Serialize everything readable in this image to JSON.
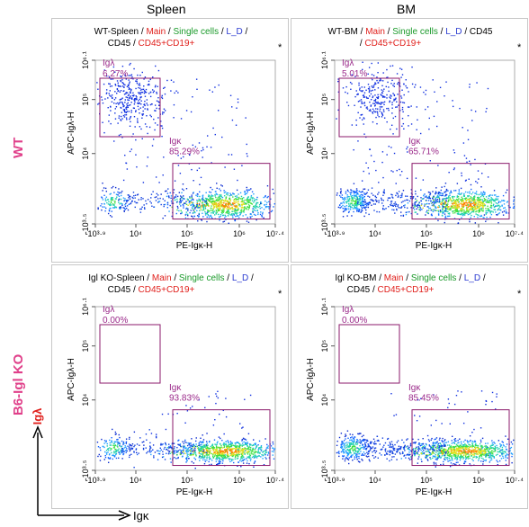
{
  "column_headers": [
    "Spleen",
    "BM"
  ],
  "row_labels": [
    "WT",
    "B6-Igl KO"
  ],
  "colors": {
    "magenta": "#e0408a",
    "gate": "#8b1a6b",
    "gate_text": "#9b2a8a",
    "red": "#e0201c",
    "green": "#1a9a2a",
    "blue": "#2a3ad0"
  },
  "axis_legend": {
    "y": "Igλ",
    "x": "Igκ"
  },
  "panels": [
    {
      "id": "wt-spleen",
      "title_line1": [
        {
          "t": "WT-Spleen",
          "c": "black"
        },
        {
          "t": " / ",
          "c": "black"
        },
        {
          "t": "Main",
          "c": "red"
        },
        {
          "t": " / ",
          "c": "black"
        },
        {
          "t": "Single cells",
          "c": "green"
        },
        {
          "t": " / ",
          "c": "black"
        },
        {
          "t": "L_D",
          "c": "blue"
        },
        {
          "t": " /",
          "c": "black"
        }
      ],
      "title_line2": [
        {
          "t": "CD45",
          "c": "black"
        },
        {
          "t": " / ",
          "c": "black"
        },
        {
          "t": "CD45+CD19+",
          "c": "red"
        }
      ],
      "star": "*",
      "xlabel": "PE-Igκ-H",
      "ylabel": "APC-Igλ-H",
      "xticks": [
        "-10³·⁹",
        "10⁴",
        "10⁵",
        "10⁶",
        "10⁷·⁴"
      ],
      "yticks": [
        "-10³·⁵",
        "10⁴",
        "10⁵",
        "10⁶·¹"
      ],
      "gate_lambda": {
        "label": "Igλ",
        "pct": "6.27%"
      },
      "gate_kappa": {
        "label": "Igκ",
        "pct": "85.29%"
      }
    },
    {
      "id": "wt-bm",
      "title_line1": [
        {
          "t": "WT-BM",
          "c": "black"
        },
        {
          "t": " / ",
          "c": "black"
        },
        {
          "t": "Main",
          "c": "red"
        },
        {
          "t": " / ",
          "c": "black"
        },
        {
          "t": "Single cells",
          "c": "green"
        },
        {
          "t": " / ",
          "c": "black"
        },
        {
          "t": "L_D",
          "c": "blue"
        },
        {
          "t": " / CD45",
          "c": "black"
        }
      ],
      "title_line2": [
        {
          "t": "/ ",
          "c": "black"
        },
        {
          "t": "CD45+CD19+",
          "c": "red"
        }
      ],
      "star": "*",
      "xlabel": "PE-Igκ-H",
      "ylabel": "APC-Igλ-H",
      "xticks": [
        "-10³·⁹",
        "10⁴",
        "10⁵",
        "10⁶",
        "10⁷·⁴"
      ],
      "yticks": [
        "-10³·⁵",
        "10⁴",
        "10⁵",
        "10⁶·¹"
      ],
      "gate_lambda": {
        "label": "Igλ",
        "pct": "5.01%"
      },
      "gate_kappa": {
        "label": "Igκ",
        "pct": "65.71%"
      }
    },
    {
      "id": "ko-spleen",
      "title_line1": [
        {
          "t": "Igl KO-Spleen",
          "c": "black"
        },
        {
          "t": " / ",
          "c": "black"
        },
        {
          "t": "Main",
          "c": "red"
        },
        {
          "t": " / ",
          "c": "black"
        },
        {
          "t": "Single cells",
          "c": "green"
        },
        {
          "t": " / ",
          "c": "black"
        },
        {
          "t": "L_D",
          "c": "blue"
        },
        {
          "t": " /",
          "c": "black"
        }
      ],
      "title_line2": [
        {
          "t": "CD45",
          "c": "black"
        },
        {
          "t": " / ",
          "c": "black"
        },
        {
          "t": "CD45+CD19+",
          "c": "red"
        }
      ],
      "star": "*",
      "xlabel": "PE-Igκ-H",
      "ylabel": "APC-Igλ-H",
      "xticks": [
        "-10³·⁹",
        "10⁴",
        "10⁵",
        "10⁶",
        "10⁷·⁴"
      ],
      "yticks": [
        "-10³·⁵",
        "10⁴",
        "10⁵",
        "10⁶·¹"
      ],
      "gate_lambda": {
        "label": "Igλ",
        "pct": "0.00%"
      },
      "gate_kappa": {
        "label": "Igκ",
        "pct": "93.83%"
      }
    },
    {
      "id": "ko-bm",
      "title_line1": [
        {
          "t": "Igl KO-BM",
          "c": "black"
        },
        {
          "t": " / ",
          "c": "black"
        },
        {
          "t": "Main",
          "c": "red"
        },
        {
          "t": " / ",
          "c": "black"
        },
        {
          "t": "Single cells",
          "c": "green"
        },
        {
          "t": " / ",
          "c": "black"
        },
        {
          "t": "L_D",
          "c": "blue"
        },
        {
          "t": " /",
          "c": "black"
        }
      ],
      "title_line2": [
        {
          "t": "CD45",
          "c": "black"
        },
        {
          "t": " / ",
          "c": "black"
        },
        {
          "t": "CD45+CD19+",
          "c": "red"
        }
      ],
      "star": "*",
      "xlabel": "PE-Igκ-H",
      "ylabel": "APC-Igλ-H",
      "xticks": [
        "-10³·⁹",
        "10⁴",
        "10⁵",
        "10⁶",
        "10⁷·⁴"
      ],
      "yticks": [
        "-10³·⁵",
        "10⁴",
        "10⁵",
        "10⁶·¹"
      ],
      "gate_lambda": {
        "label": "Igλ",
        "pct": "0.00%"
      },
      "gate_kappa": {
        "label": "Igκ",
        "pct": "85.45%"
      }
    }
  ],
  "chart_data": {
    "type": "scatter",
    "subtype": "flow-cytometry-density-plot",
    "title": "",
    "xlabel": "PE-Igκ-H",
    "ylabel": "APC-Igλ-H",
    "columns": [
      "Spleen",
      "BM"
    ],
    "rows": [
      "WT",
      "B6-Igl KO"
    ],
    "gates": [
      {
        "panel": "WT-Spleen",
        "Igλ": 6.27,
        "Igκ": 85.29
      },
      {
        "panel": "WT-BM",
        "Igλ": 5.01,
        "Igκ": 65.71
      },
      {
        "panel": "Igl KO-Spleen",
        "Igλ": 0.0,
        "Igκ": 93.83
      },
      {
        "panel": "Igl KO-BM",
        "Igλ": 0.0,
        "Igκ": 85.45
      }
    ]
  }
}
